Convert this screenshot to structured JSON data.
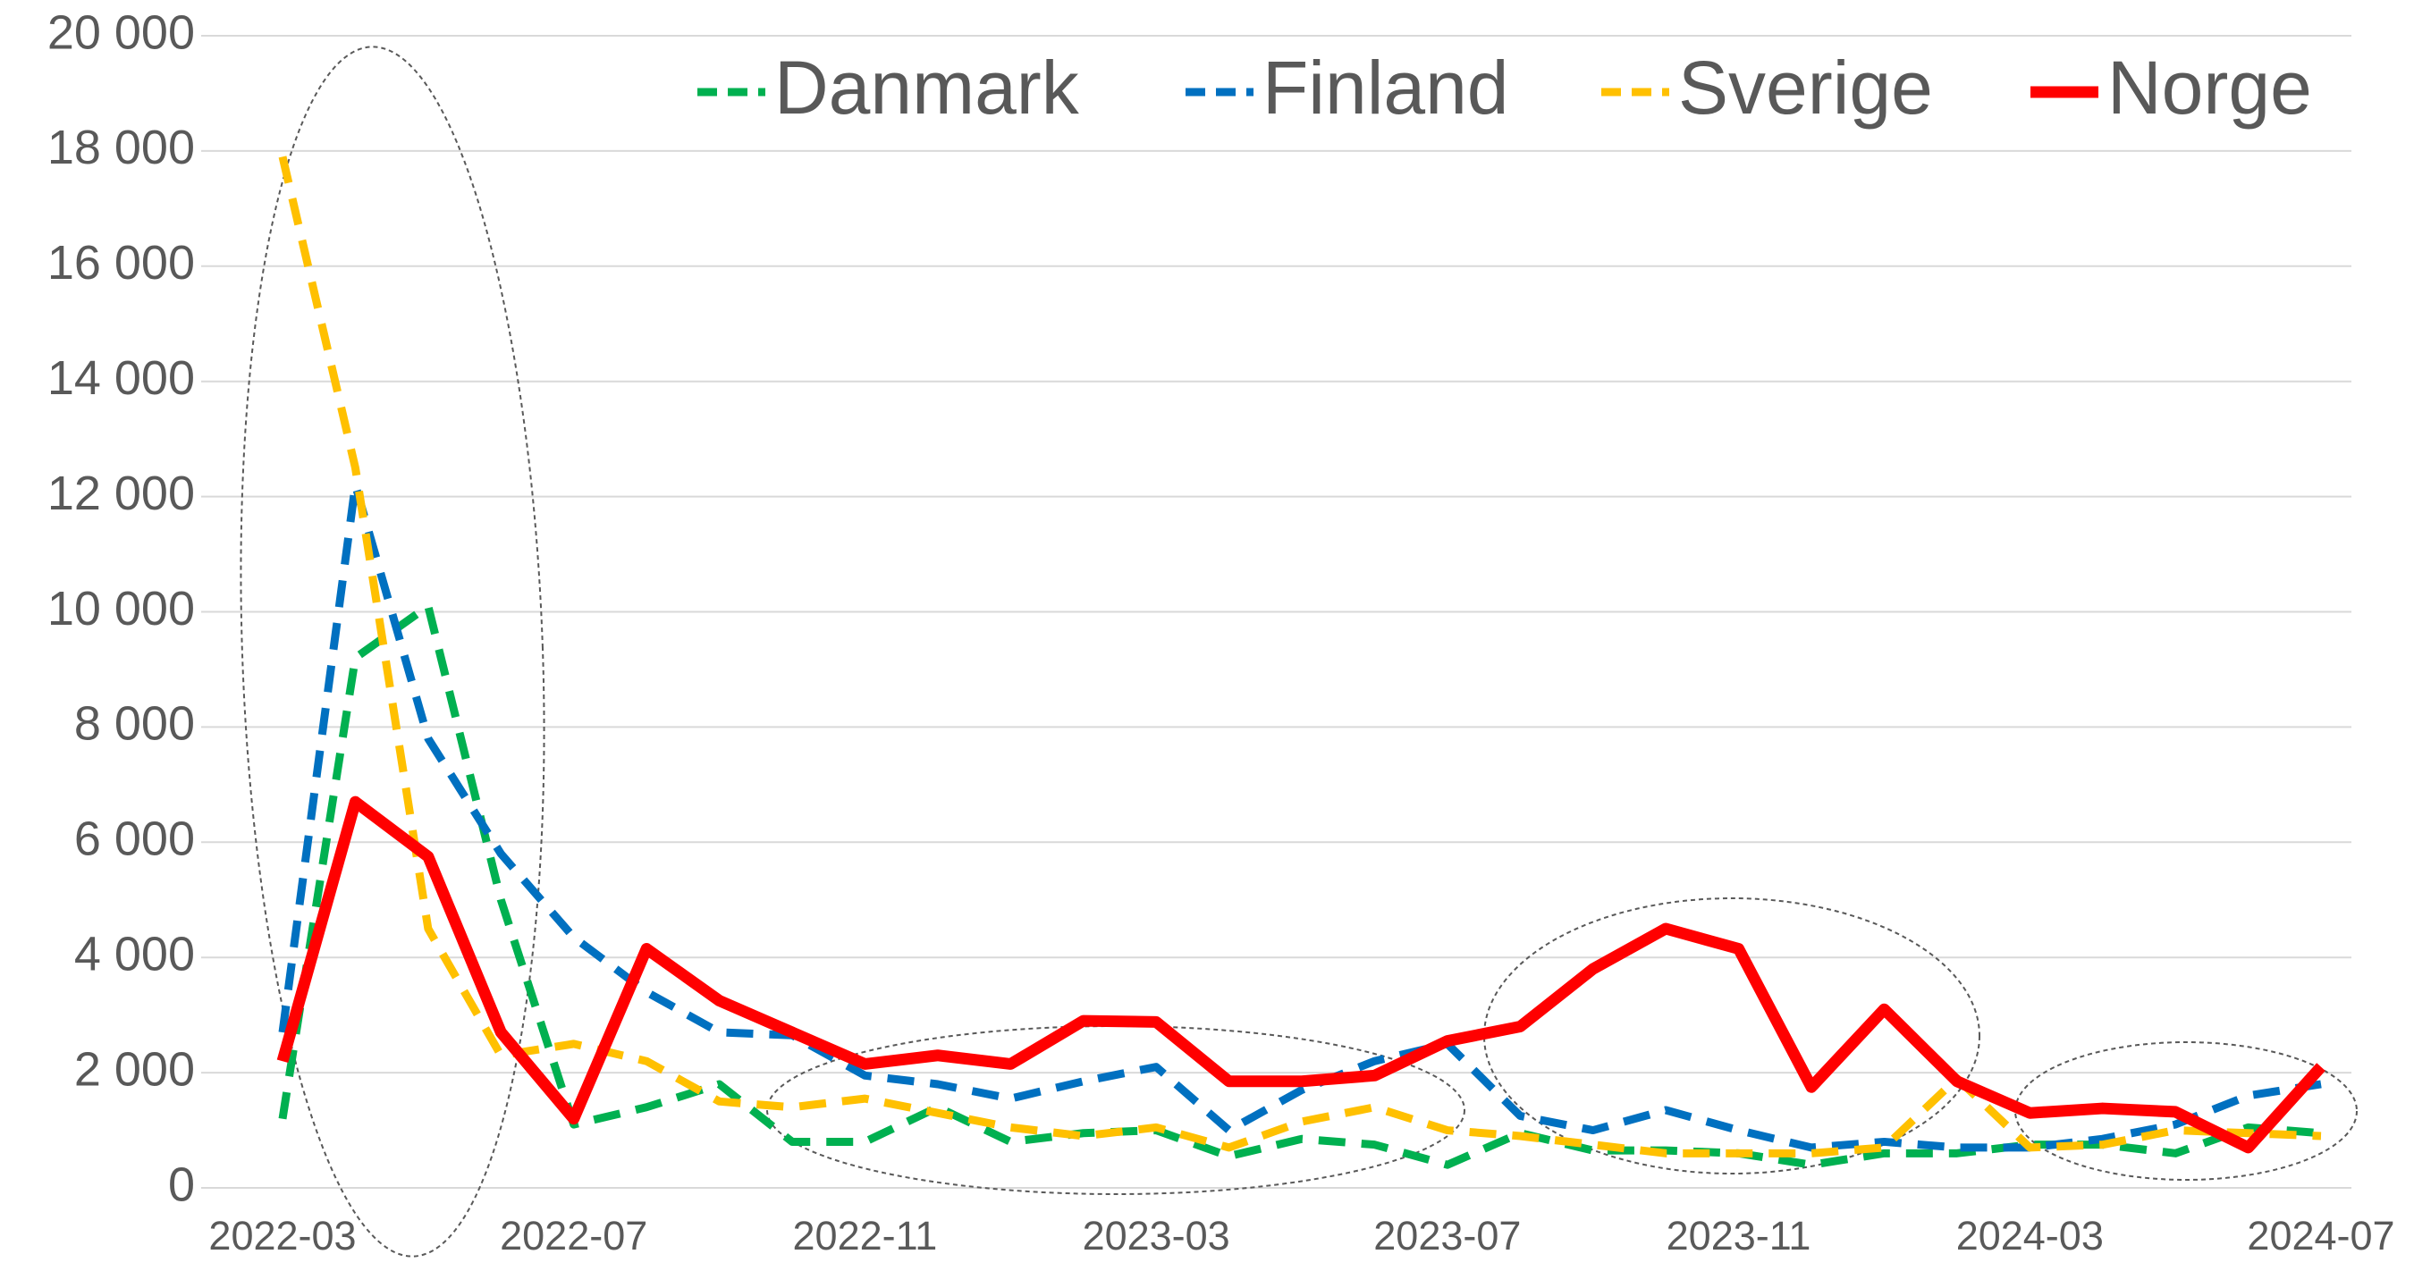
{
  "chart_data": {
    "type": "line",
    "categories": [
      "2022-03",
      null,
      null,
      null,
      "2022-07",
      null,
      null,
      null,
      "2022-11",
      null,
      null,
      null,
      "2023-03",
      null,
      null,
      null,
      "2023-07",
      null,
      null,
      null,
      "2023-11",
      null,
      null,
      null,
      "2024-03",
      null,
      null,
      null,
      "2024-07"
    ],
    "series": [
      {
        "name": "Danmark",
        "color": "#00b050",
        "line_style": "dashed",
        "values": [
          1200,
          9200,
          10100,
          5000,
          1100,
          1400,
          1800,
          800,
          800,
          1400,
          800,
          950,
          1000,
          550,
          850,
          750,
          400,
          950,
          650,
          650,
          600,
          400,
          600,
          600,
          750,
          750,
          600,
          1050,
          950
        ]
      },
      {
        "name": "Finland",
        "color": "#0070c0",
        "line_style": "dashed",
        "values": [
          2700,
          12200,
          7800,
          5800,
          4350,
          3400,
          2700,
          2650,
          1950,
          1800,
          1550,
          1850,
          2100,
          1000,
          1700,
          2200,
          2500,
          1250,
          1000,
          1350,
          1000,
          700,
          800,
          700,
          700,
          850,
          1100,
          1600,
          1800
        ]
      },
      {
        "name": "Sverige",
        "color": "#ffc000",
        "line_style": "dashed",
        "values": [
          17900,
          12500,
          4500,
          2300,
          2500,
          2200,
          1500,
          1400,
          1550,
          1300,
          1050,
          900,
          1050,
          700,
          1150,
          1400,
          1000,
          900,
          750,
          600,
          600,
          600,
          700,
          1900,
          700,
          750,
          1000,
          950,
          900
        ]
      },
      {
        "name": "Norge",
        "color": "#ff0000",
        "line_style": "solid",
        "values": [
          2200,
          6700,
          5750,
          2700,
          1200,
          4150,
          3250,
          2700,
          2150,
          2300,
          2150,
          2900,
          2880,
          1850,
          1850,
          1950,
          2550,
          2800,
          3800,
          4500,
          4150,
          1750,
          3100,
          1850,
          1300,
          1380,
          1320,
          700,
          2100
        ]
      }
    ],
    "ylim": [
      0,
      20000
    ],
    "yticks": [
      0,
      {
        "value": 2000,
        "label": "2 000"
      },
      {
        "value": 4000,
        "label": "4 000"
      },
      {
        "value": 6000,
        "label": "6 000"
      },
      {
        "value": 8000,
        "label": "8 000"
      },
      {
        "value": 10000,
        "label": "10 000"
      },
      {
        "value": 12000,
        "label": "12 000"
      },
      {
        "value": 14000,
        "label": "14 000"
      },
      {
        "value": 16000,
        "label": "16 000"
      },
      {
        "value": 18000,
        "label": "18 000"
      },
      {
        "value": 20000,
        "label": "20 000"
      }
    ],
    "grid": true,
    "legend": "top-right"
  }
}
